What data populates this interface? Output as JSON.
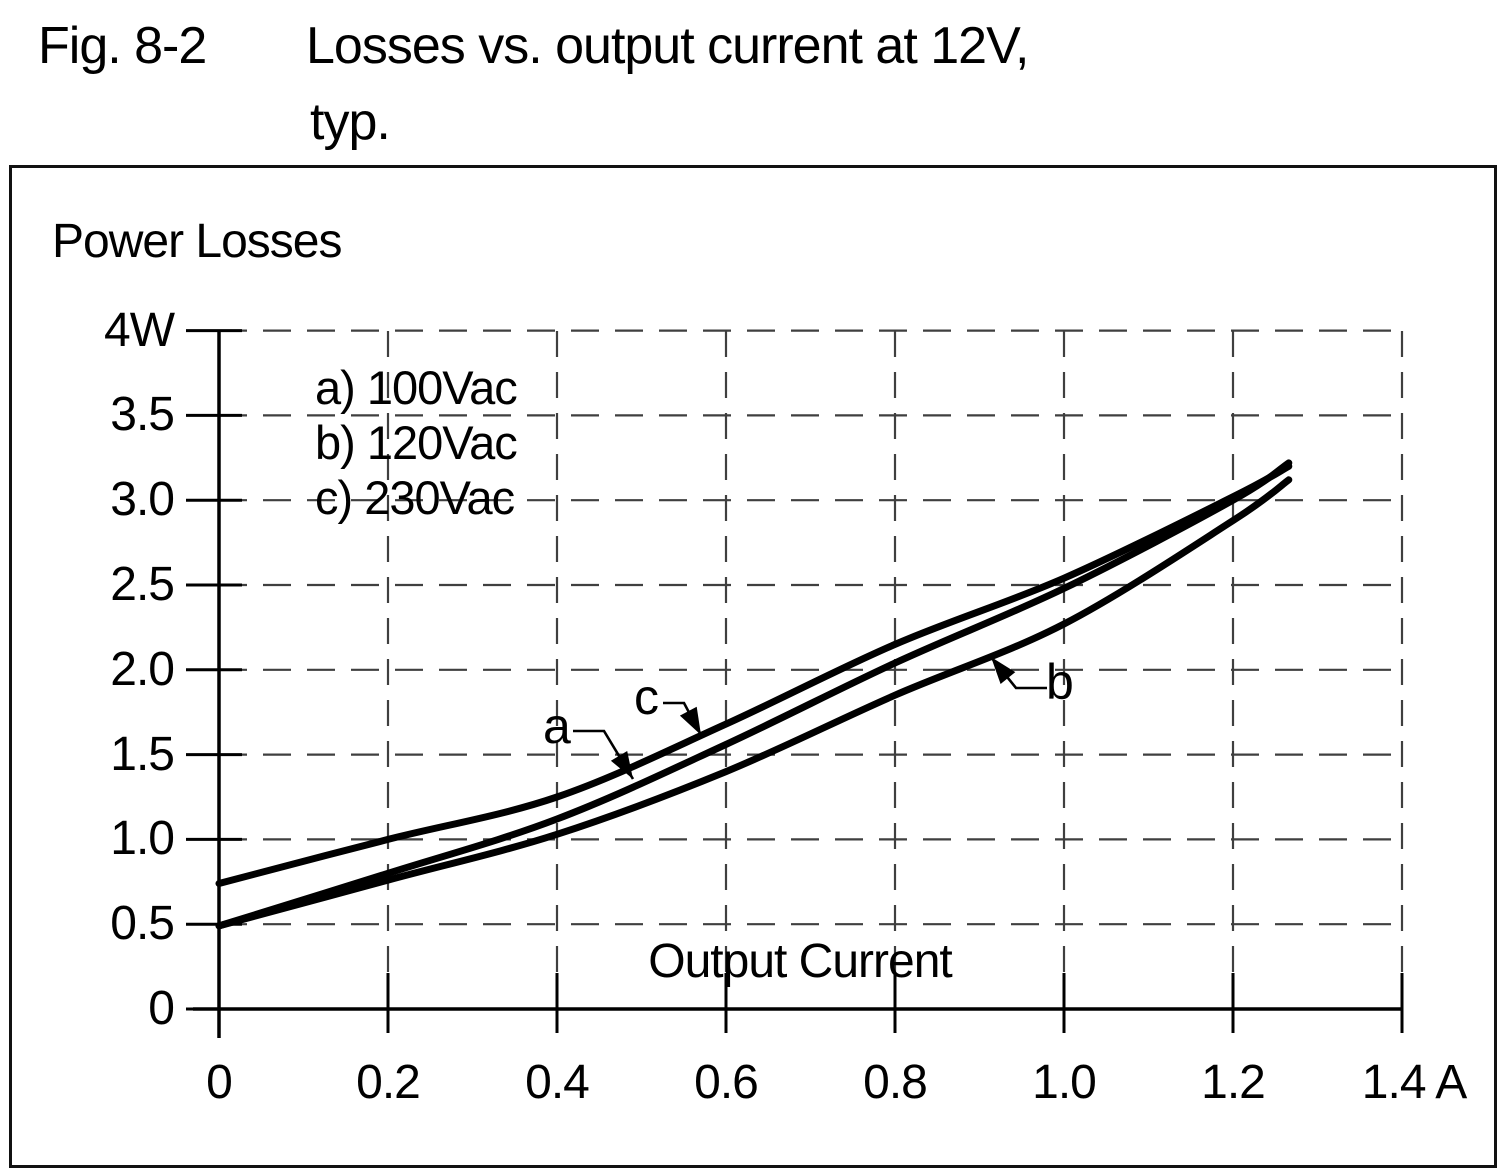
{
  "figure": {
    "label": "Fig. 8-2",
    "title_line1": "Losses vs. output current at 12V,",
    "title_line2": "typ."
  },
  "chart_data": {
    "type": "line",
    "title": "Power Losses",
    "xlabel": "Output Current",
    "x_unit": "A",
    "y_unit": "W",
    "xlim": [
      0,
      1.4
    ],
    "ylim": [
      0,
      4
    ],
    "grid": "dashed",
    "legend_position": "top-left-inside",
    "x_ticks": [
      0,
      0.2,
      0.4,
      0.6,
      0.8,
      1.0,
      1.2,
      1.4
    ],
    "x_tick_labels": [
      "0",
      "0.2",
      "0.4",
      "0.6",
      "0.8",
      "1.0",
      "1.2",
      "1.4 A"
    ],
    "y_ticks": [
      4,
      3.5,
      3,
      2.5,
      2,
      1.5,
      1,
      0.5,
      0
    ],
    "y_tick_labels": [
      "4W",
      "3.5",
      "3.0",
      "2.5",
      "2.0",
      "1.5",
      "1.0",
      "0.5",
      "0"
    ],
    "legend": [
      {
        "key": "a",
        "text": "a) 100Vac"
      },
      {
        "key": "b",
        "text": "b) 120Vac"
      },
      {
        "key": "c",
        "text": "c) 230Vac"
      }
    ],
    "series": [
      {
        "name": "a",
        "condition": "100Vac",
        "x": [
          0,
          0.2,
          0.4,
          0.6,
          0.8,
          1.0,
          1.2,
          1.266
        ],
        "y": [
          0.49,
          0.8,
          1.12,
          1.56,
          2.04,
          2.48,
          3.0,
          3.22
        ]
      },
      {
        "name": "b",
        "condition": "120Vac",
        "x": [
          0,
          0.2,
          0.4,
          0.6,
          0.8,
          1.0,
          1.2,
          1.266
        ],
        "y": [
          0.49,
          0.76,
          1.03,
          1.4,
          1.85,
          2.27,
          2.88,
          3.12
        ]
      },
      {
        "name": "c",
        "condition": "230Vac",
        "x": [
          0,
          0.2,
          0.4,
          0.6,
          0.8,
          1.0,
          1.2,
          1.266
        ],
        "y": [
          0.74,
          1.0,
          1.25,
          1.68,
          2.15,
          2.54,
          3.02,
          3.2
        ]
      }
    ],
    "annotations": [
      {
        "text": "a",
        "series": "a"
      },
      {
        "text": "b",
        "series": "b"
      },
      {
        "text": "c",
        "series": "c"
      }
    ]
  },
  "colors": {
    "line": "#000000",
    "grid": "#3f3f3f",
    "axis": "#000000",
    "text": "#000000",
    "background": "#ffffff"
  }
}
